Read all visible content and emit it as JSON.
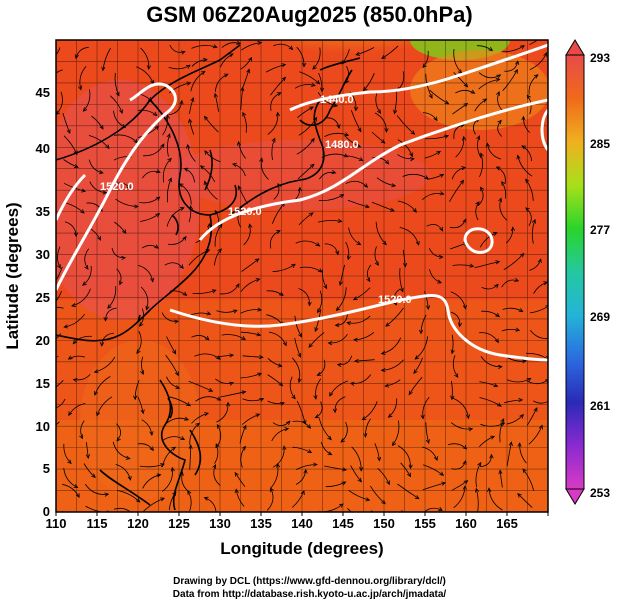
{
  "title": "GSM 06Z20Aug2025 (850.0hPa)",
  "axes": {
    "xlabel": "Longitude (degrees)",
    "ylabel": "Latitude  (degrees)",
    "xticks": [
      "110",
      "115",
      "120",
      "125",
      "130",
      "135",
      "140",
      "145",
      "150",
      "155",
      "160",
      "165"
    ],
    "yticks": [
      "0",
      "5",
      "10",
      "15",
      "20",
      "25",
      "30",
      "35",
      "40",
      "45"
    ]
  },
  "colorbar": {
    "ticks": [
      "293",
      "285",
      "277",
      "269",
      "261",
      "253"
    ],
    "min": 253,
    "max": 293,
    "colors": [
      "#d93ac4",
      "#2a2ab8",
      "#2a8ce0",
      "#24c8c8",
      "#2ad42a",
      "#a8e01a",
      "#e8c020",
      "#f07a1a",
      "#e83a1a",
      "#e84a4a"
    ]
  },
  "contours": [
    {
      "label": "1440.0"
    },
    {
      "label": "1480.0"
    },
    {
      "label": "1520.0"
    },
    {
      "label": "1520.0"
    },
    {
      "label": "1520.0"
    }
  ],
  "credits": {
    "line1": "Drawing by DCL (https://www.gfd-dennou.org/library/dcl/)",
    "line2": "Data from http://database.rish.kyoto-u.ac.jp/arch/jmadata/"
  }
}
